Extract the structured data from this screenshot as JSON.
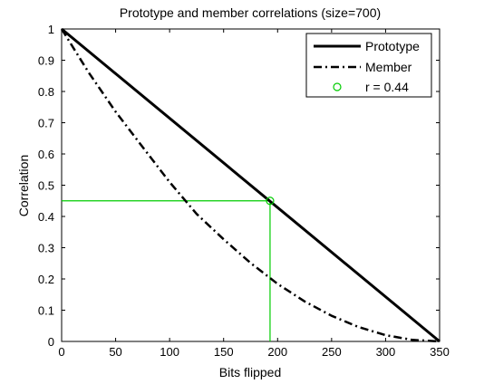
{
  "chart_data": {
    "type": "line",
    "title": "Prototype and member correlations (size=700)",
    "xlabel": "Bits flipped",
    "ylabel": "Correlation",
    "xlim": [
      0,
      350
    ],
    "ylim": [
      0,
      1
    ],
    "x_ticks": [
      "0",
      "50",
      "100",
      "150",
      "200",
      "250",
      "300",
      "350"
    ],
    "y_ticks": [
      "0",
      "0.1",
      "0.2",
      "0.3",
      "0.4",
      "0.5",
      "0.6",
      "0.7",
      "0.8",
      "0.9",
      "1"
    ],
    "grid": false,
    "legend_position": "top-right",
    "series": [
      {
        "name": "Prototype",
        "style": "solid",
        "color": "#000000",
        "x": [
          0,
          350
        ],
        "y": [
          1,
          0
        ]
      },
      {
        "name": "Member",
        "style": "dash-dot",
        "color": "#000000",
        "x": [
          0,
          25,
          50,
          75,
          100,
          125,
          150,
          175,
          200,
          225,
          250,
          275,
          300,
          325,
          350
        ],
        "y": [
          1.0,
          0.861,
          0.735,
          0.622,
          0.51,
          0.408,
          0.327,
          0.251,
          0.184,
          0.128,
          0.082,
          0.046,
          0.02,
          0.005,
          0.0
        ]
      }
    ],
    "marker": {
      "name": "r = 0.44",
      "color": "#00cc00",
      "x": 193,
      "y": 0.45
    }
  }
}
